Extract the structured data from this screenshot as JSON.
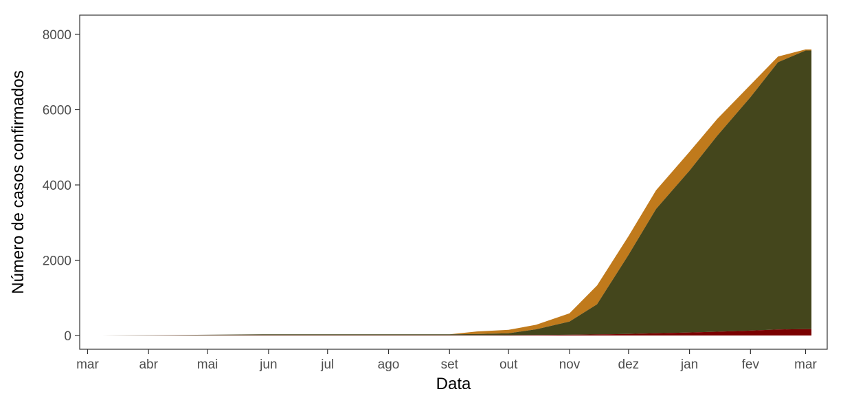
{
  "chart_data": {
    "type": "area",
    "stacked": true,
    "xlabel": "Data",
    "ylabel": "Número de casos confirmados",
    "ylim": [
      0,
      8000
    ],
    "yticks": [
      0,
      2000,
      4000,
      6000,
      8000
    ],
    "xlim": [
      "2020-02-26",
      "2021-03-12"
    ],
    "xticks": [
      {
        "date": "2020-03-01",
        "label": "mar"
      },
      {
        "date": "2020-04-01",
        "label": "abr"
      },
      {
        "date": "2020-05-01",
        "label": "mai"
      },
      {
        "date": "2020-06-01",
        "label": "jun"
      },
      {
        "date": "2020-07-01",
        "label": "jul"
      },
      {
        "date": "2020-08-01",
        "label": "ago"
      },
      {
        "date": "2020-09-01",
        "label": "set"
      },
      {
        "date": "2020-10-01",
        "label": "out"
      },
      {
        "date": "2020-11-01",
        "label": "nov"
      },
      {
        "date": "2020-12-01",
        "label": "dez"
      },
      {
        "date": "2021-01-01",
        "label": "jan"
      },
      {
        "date": "2021-02-01",
        "label": "fev"
      },
      {
        "date": "2021-03-01",
        "label": "mar"
      }
    ],
    "grid": false,
    "legend": "none",
    "x": [
      "2020-03-08",
      "2020-04-01",
      "2020-05-01",
      "2020-06-01",
      "2020-07-01",
      "2020-08-01",
      "2020-09-01",
      "2020-09-15",
      "2020-10-01",
      "2020-10-15",
      "2020-11-01",
      "2020-11-15",
      "2020-12-01",
      "2020-12-15",
      "2021-01-01",
      "2021-01-15",
      "2021-02-01",
      "2021-02-15",
      "2021-03-01",
      "2021-03-04"
    ],
    "series": [
      {
        "color": "#7a0000",
        "values": [
          0,
          2,
          5,
          8,
          8,
          8,
          8,
          8,
          10,
          15,
          20,
          30,
          40,
          60,
          80,
          100,
          130,
          160,
          170,
          170
        ]
      },
      {
        "color": "#44461c",
        "values": [
          0,
          8,
          15,
          25,
          25,
          25,
          25,
          30,
          50,
          150,
          350,
          800,
          2100,
          3300,
          4300,
          5200,
          6200,
          7100,
          7400,
          7400
        ]
      },
      {
        "color": "#c07a1c",
        "values": [
          0,
          0,
          0,
          0,
          0,
          0,
          0,
          70,
          90,
          120,
          220,
          500,
          500,
          500,
          500,
          450,
          330,
          150,
          30,
          30
        ]
      }
    ]
  }
}
